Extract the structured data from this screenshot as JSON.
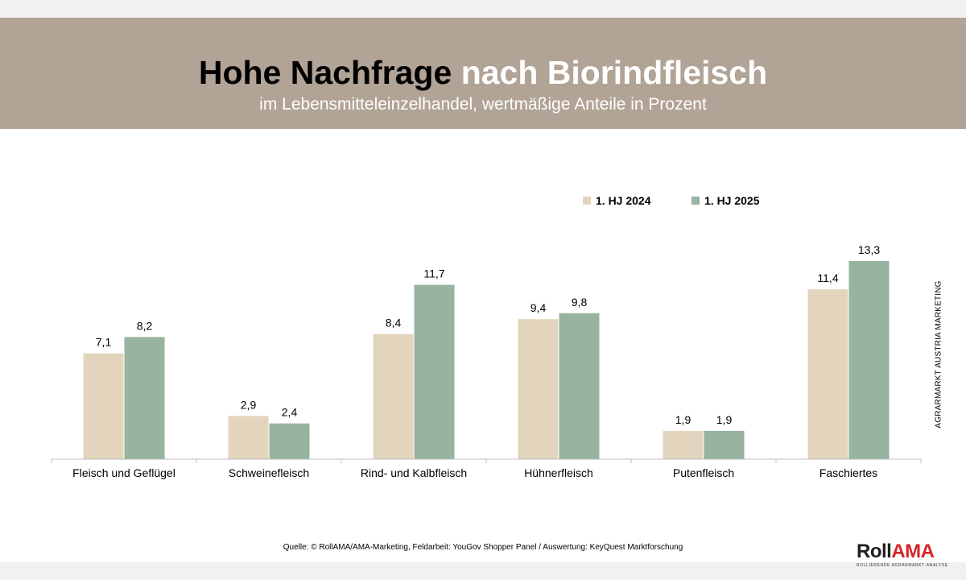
{
  "header": {
    "title_part1": "Hohe Nachfrage",
    "title_part2": "nach Biorindfleisch",
    "subtitle": "im Lebensmitteleinzelhandel, wertmäßige Anteile in Prozent",
    "background_color": "#b1a395"
  },
  "chart_data": {
    "type": "bar",
    "title": "Hohe Nachfrage nach Biorindfleisch",
    "subtitle": "im Lebensmitteleinzelhandel, wertmäßige Anteile in Prozent",
    "categories": [
      "Fleisch und Geflügel",
      "Schweinefleisch",
      "Rind- und Kalbfleisch",
      "Hühnerfleisch",
      "Putenfleisch",
      "Faschiertes"
    ],
    "series": [
      {
        "name": "1. HJ 2024",
        "color": "#e3d5bd",
        "values": [
          7.1,
          2.9,
          8.4,
          9.4,
          1.9,
          11.4
        ],
        "labels": [
          "7,1",
          "2,9",
          "8,4",
          "9,4",
          "1,9",
          "11,4"
        ]
      },
      {
        "name": "1. HJ 2025",
        "color": "#98b39f",
        "values": [
          8.2,
          2.4,
          11.7,
          9.8,
          1.9,
          13.3
        ],
        "labels": [
          "8,2",
          "2,4",
          "11,7",
          "9,8",
          "1,9",
          "13,3"
        ]
      }
    ],
    "ylim": [
      0,
      14.6
    ],
    "grid": false,
    "legend_position": "top-right",
    "xlabel": "",
    "ylabel": ""
  },
  "side_text": "AGRARMARKT AUSTRIA MARKETING",
  "source": "Quelle: © RollAMA/AMA-Marketing, Feldarbeit: YouGov Shopper Panel / Auswertung: KeyQuest Marktforschung",
  "logo": {
    "roll": "Roll",
    "ama": "AMA",
    "tagline": "ROLLIERENDE AGRARMARKT-ANALYSE",
    "accent_color": "#d8232a"
  }
}
